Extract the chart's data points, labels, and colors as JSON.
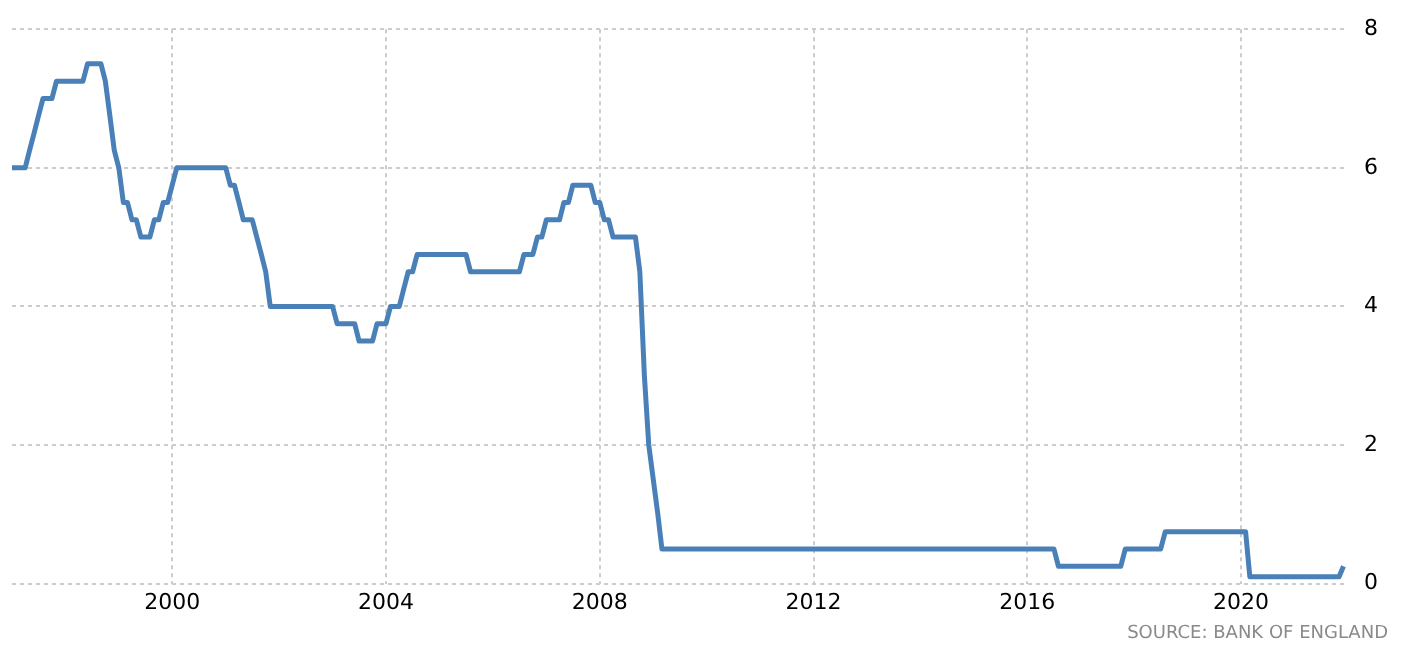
{
  "chart_data": {
    "type": "line",
    "x": [
      "1997-01",
      "1997-04",
      "1997-05",
      "1997-06",
      "1997-07",
      "1997-08",
      "1997-10",
      "1997-11",
      "1998-05",
      "1998-06",
      "1998-09",
      "1998-10",
      "1998-11",
      "1998-12",
      "1999-01",
      "1999-02",
      "1999-03",
      "1999-04",
      "1999-05",
      "1999-06",
      "1999-08",
      "1999-09",
      "1999-10",
      "1999-11",
      "1999-12",
      "2000-01",
      "2000-02",
      "2001-01",
      "2001-02",
      "2001-03",
      "2001-04",
      "2001-05",
      "2001-07",
      "2001-08",
      "2001-09",
      "2001-10",
      "2001-11",
      "2003-01",
      "2003-02",
      "2003-06",
      "2003-07",
      "2003-10",
      "2003-11",
      "2004-01",
      "2004-02",
      "2004-04",
      "2004-05",
      "2004-06",
      "2004-07",
      "2004-08",
      "2005-07",
      "2005-08",
      "2006-07",
      "2006-08",
      "2006-10",
      "2006-11",
      "2006-12",
      "2007-01",
      "2007-04",
      "2007-05",
      "2007-06",
      "2007-07",
      "2007-11",
      "2007-12",
      "2008-01",
      "2008-02",
      "2008-03",
      "2008-04",
      "2008-09",
      "2008-10",
      "2008-11",
      "2008-12",
      "2009-01",
      "2009-02",
      "2009-03",
      "2016-07",
      "2016-08",
      "2017-10",
      "2017-11",
      "2018-07",
      "2018-08",
      "2020-02",
      "2020-03",
      "2021-11",
      "2021-12"
    ],
    "series": [
      {
        "color": "#4a80b8",
        "values": [
          6.0,
          6.0,
          6.25,
          6.5,
          6.75,
          7.0,
          7.0,
          7.25,
          7.25,
          7.5,
          7.5,
          7.25,
          6.75,
          6.25,
          6.0,
          5.5,
          5.5,
          5.25,
          5.25,
          5.0,
          5.0,
          5.25,
          5.25,
          5.5,
          5.5,
          5.75,
          6.0,
          6.0,
          5.75,
          5.75,
          5.5,
          5.25,
          5.25,
          5.0,
          4.75,
          4.5,
          4.0,
          4.0,
          3.75,
          3.75,
          3.5,
          3.5,
          3.75,
          3.75,
          4.0,
          4.0,
          4.25,
          4.5,
          4.5,
          4.75,
          4.75,
          4.5,
          4.5,
          4.75,
          4.75,
          5.0,
          5.0,
          5.25,
          5.25,
          5.5,
          5.5,
          5.75,
          5.75,
          5.5,
          5.5,
          5.25,
          5.25,
          5.0,
          5.0,
          4.5,
          3.0,
          2.0,
          1.5,
          1.0,
          0.5,
          0.5,
          0.25,
          0.25,
          0.5,
          0.5,
          0.75,
          0.75,
          0.1,
          0.1,
          0.25
        ]
      }
    ],
    "xlim": [
      "1997-01",
      "2022-01"
    ],
    "xticks": [
      "2000",
      "2004",
      "2008",
      "2012",
      "2016",
      "2020"
    ],
    "ylim": [
      0,
      8
    ],
    "yticks": [
      0,
      2,
      4,
      6,
      8
    ],
    "grid": true,
    "legend": false,
    "marker": "none",
    "line_style": "solid",
    "annotations": [
      "SOURCE: BANK OF ENGLAND"
    ]
  }
}
